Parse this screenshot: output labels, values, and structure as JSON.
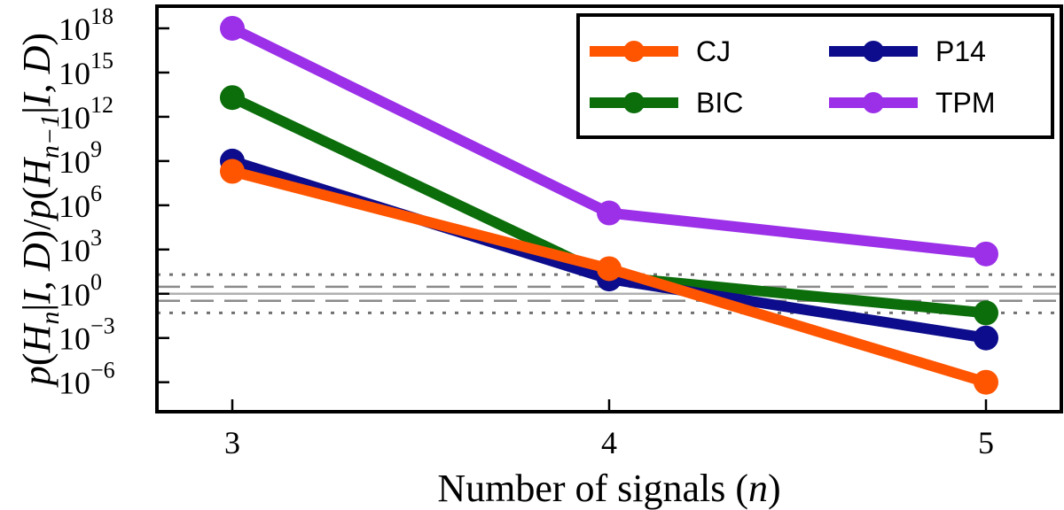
{
  "chart_data": {
    "type": "line",
    "xlabel": "Number of signals (n)",
    "ylabel": "p(H_n|I,D)/p(H_n−1|I,D)",
    "yscale": "log",
    "categories": [
      3,
      4,
      5
    ],
    "xlim": [
      2.8,
      5.2
    ],
    "ylim_log10": [
      -8,
      19.5
    ],
    "x_tick_labels": [
      "3",
      "4",
      "5"
    ],
    "y_ticks": [
      {
        "exp": 18,
        "base": "10",
        "sup": "18"
      },
      {
        "exp": 15,
        "base": "10",
        "sup": "15"
      },
      {
        "exp": 12,
        "base": "10",
        "sup": "12"
      },
      {
        "exp": 9,
        "base": "10",
        "sup": "9"
      },
      {
        "exp": 6,
        "base": "10",
        "sup": "6"
      },
      {
        "exp": 3,
        "base": "10",
        "sup": "3"
      },
      {
        "exp": 0,
        "base": "10",
        "sup": "0"
      },
      {
        "exp": -3,
        "base": "10",
        "sup": "−3"
      },
      {
        "exp": -6,
        "base": "10",
        "sup": "−6"
      }
    ],
    "reference_lines": [
      {
        "value": 1,
        "style": "solid",
        "color": "#b0b0b0"
      },
      {
        "value": 3,
        "style": "dashed",
        "color": "#8a8a8a"
      },
      {
        "value": 0.3333,
        "style": "dashed",
        "color": "#8a8a8a"
      },
      {
        "value": 20,
        "style": "dotted",
        "color": "#707070"
      },
      {
        "value": 0.05,
        "style": "dotted",
        "color": "#707070"
      }
    ],
    "legend_position": "top-right",
    "legend_columns": 2,
    "series": [
      {
        "name": "CJ",
        "color": "#ff5500",
        "values": [
          200000000.0,
          50,
          1e-06
        ]
      },
      {
        "name": "P14",
        "color": "#0c0c8c",
        "values": [
          1000000000.0,
          10,
          0.001
        ]
      },
      {
        "name": "BIC",
        "color": "#0b6e0b",
        "values": [
          20000000000000.0,
          15,
          0.05
        ]
      },
      {
        "name": "TPM",
        "color": "#9b30e8",
        "values": [
          1e+18,
          300000.0,
          500.0
        ]
      }
    ]
  }
}
